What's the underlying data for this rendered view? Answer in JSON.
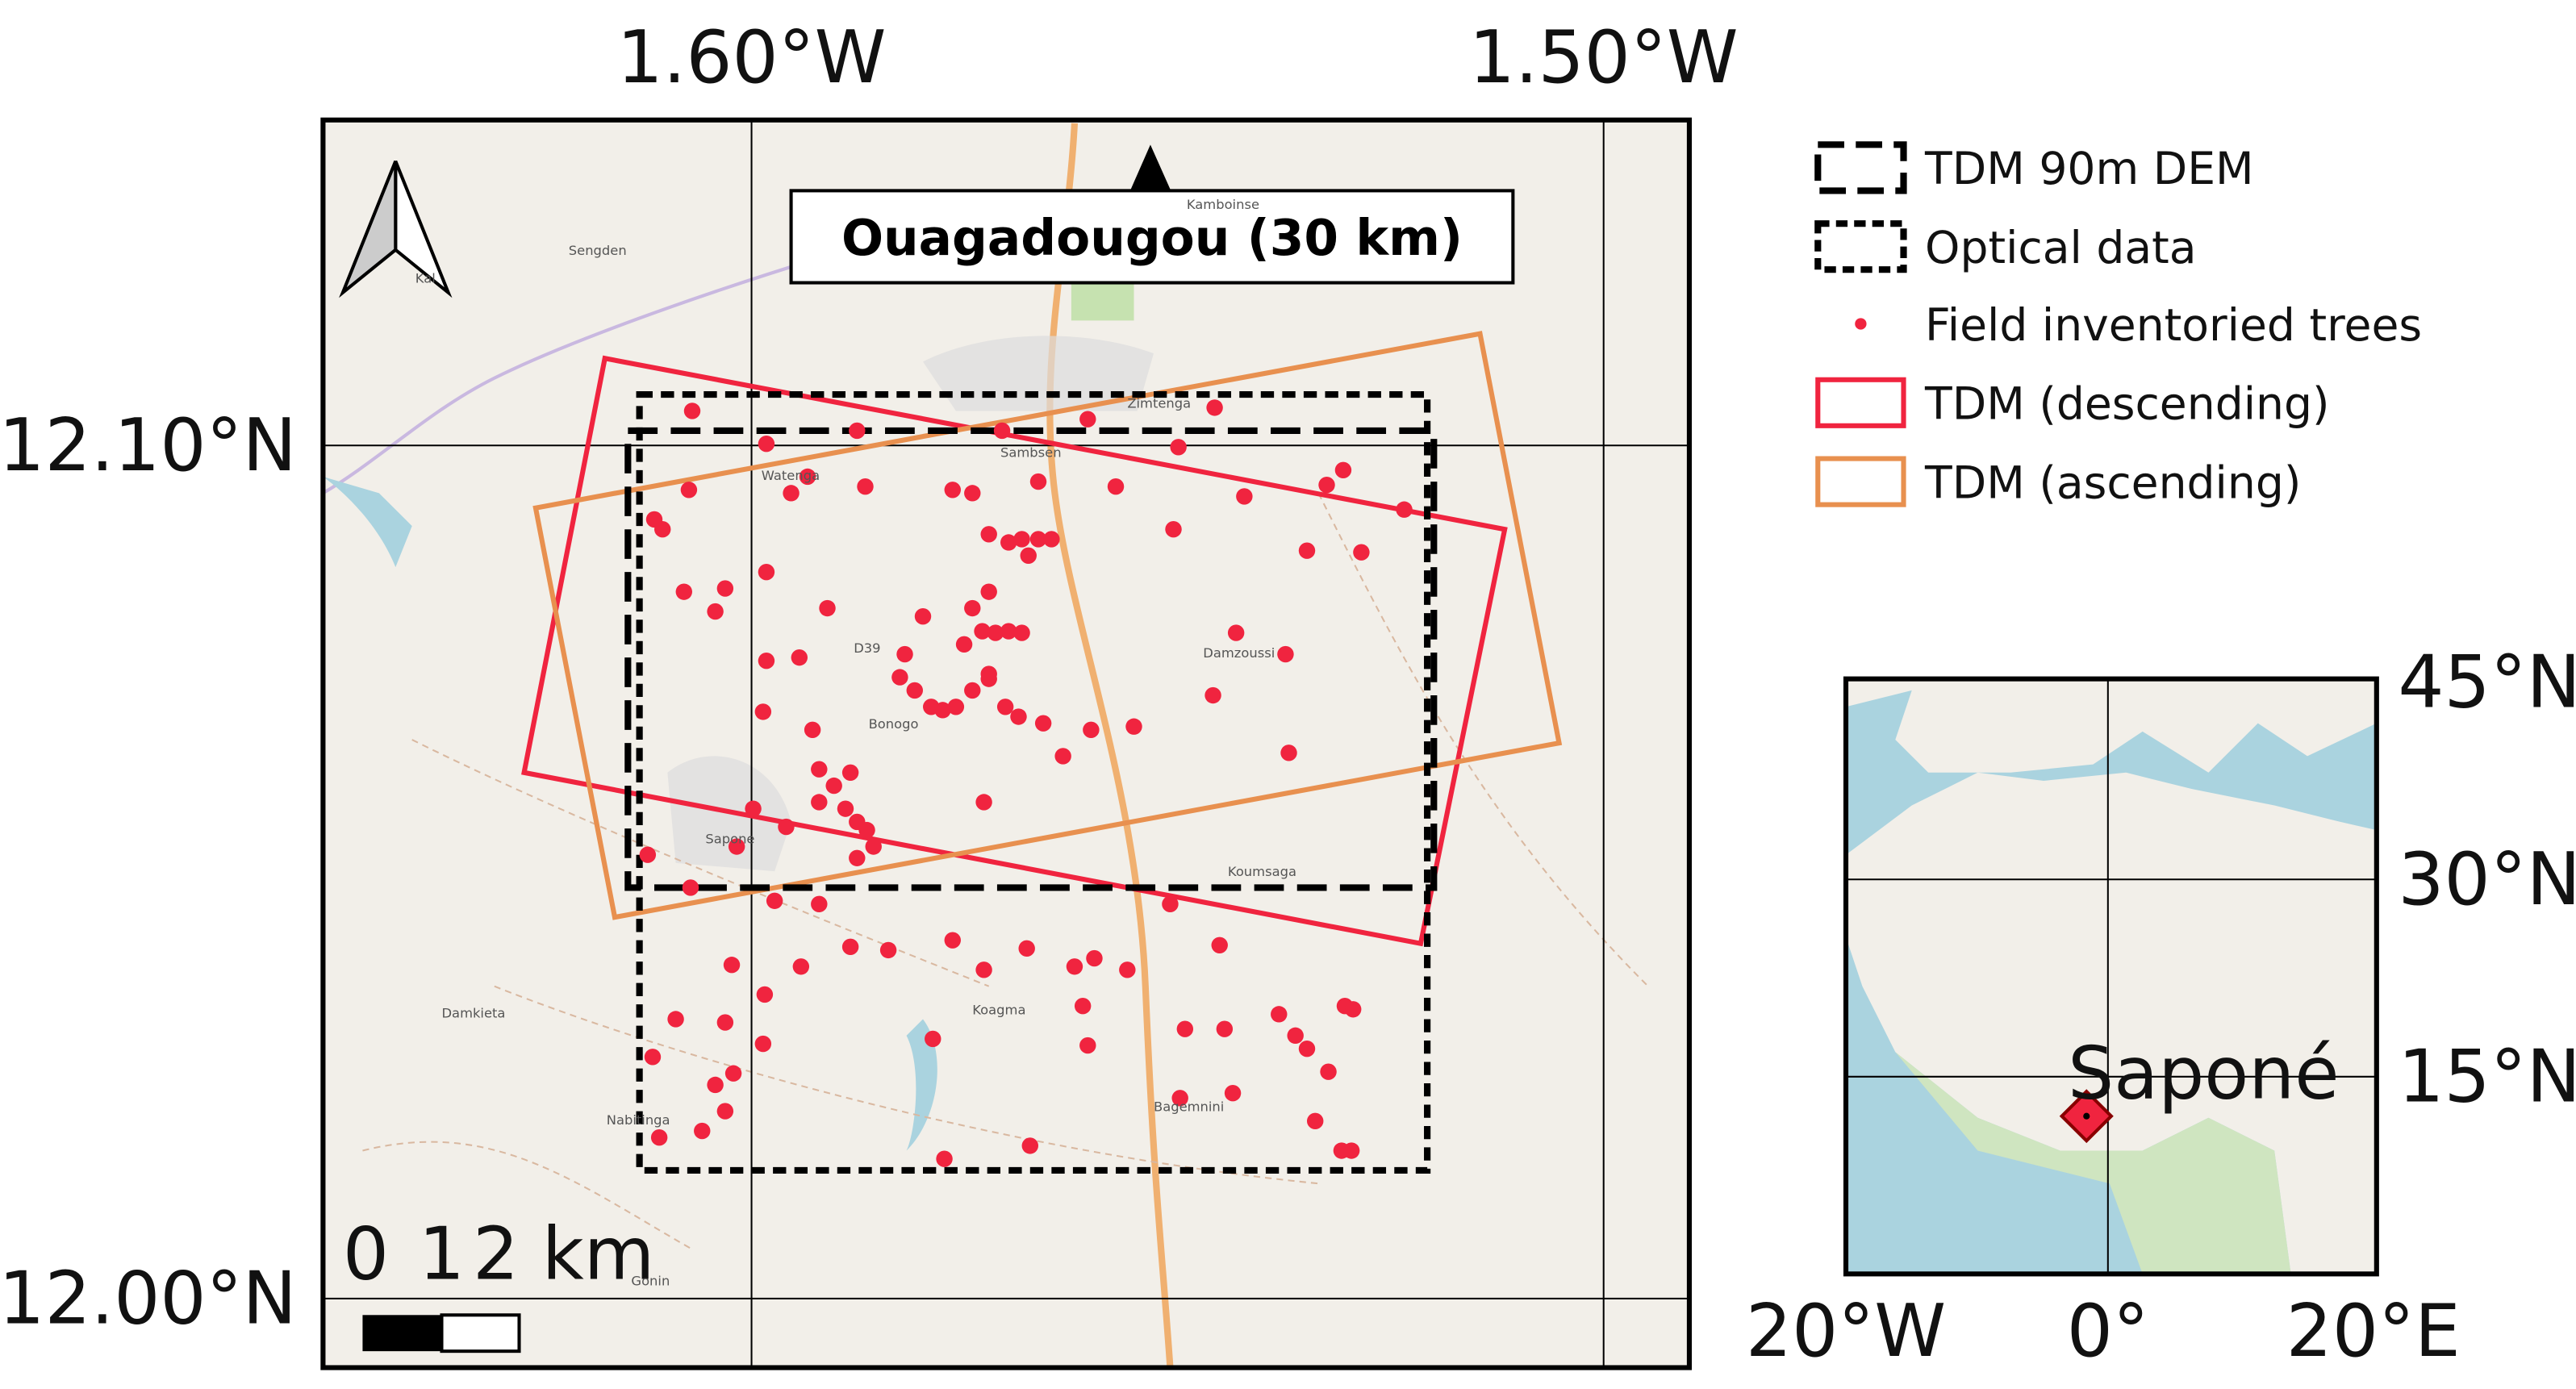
{
  "map": {
    "lon_labels": [
      "1.60°W",
      "1.50°W"
    ],
    "lat_labels": [
      "12.10°N",
      "12.00°N"
    ],
    "callout": "Ouagadougou (30 km)",
    "scale_bar": [
      "0",
      "1",
      "2 km"
    ],
    "places": [
      "Sengden",
      "Kamboinse",
      "Watenga",
      "Sambsen",
      "Zimtenga",
      "D39",
      "Bonogo",
      "Sapone",
      "Damzoussi",
      "Koumsaga",
      "Damkieta",
      "Koagma",
      "Nabitinga",
      "Bagemnini",
      "Gonin",
      "Kal"
    ],
    "legend": [
      "TDM 90m DEM",
      "Optical data",
      "Field inventoried trees",
      "TDM (descending)",
      "TDM (ascending)"
    ],
    "inset": {
      "lon_labels": [
        "20°W",
        "0°",
        "20°E"
      ],
      "lat_labels": [
        "45°N",
        "30°N",
        "15°N"
      ],
      "site": "Saponé"
    }
  }
}
